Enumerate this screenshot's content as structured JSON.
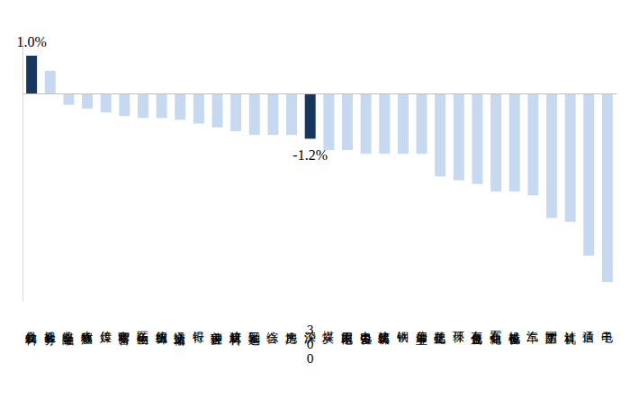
{
  "chart_data": {
    "type": "bar",
    "categories": [
      "食品饮料",
      "社会服务",
      "非银金融",
      "农林牧渔",
      "传媒",
      "商贸零售",
      "医药生物",
      "纺织服饰",
      "交通运输",
      "银行",
      "美容护理",
      "建筑材料",
      "轻工制造",
      "综合",
      "房地产",
      "沪深300",
      "煤炭",
      "家用电器",
      "电力设备",
      "建筑装饰",
      "钢铁",
      "公用事业",
      "基础化工",
      "环保",
      "有色金属",
      "石油石化",
      "机械设备",
      "汽车",
      "国防军工",
      "计算机",
      "通信",
      "电子"
    ],
    "values": [
      1.0,
      0.6,
      -0.3,
      -0.4,
      -0.5,
      -0.6,
      -0.65,
      -0.65,
      -0.7,
      -0.8,
      -0.9,
      -1.0,
      -1.1,
      -1.1,
      -1.1,
      -1.2,
      -1.5,
      -1.5,
      -1.6,
      -1.6,
      -1.6,
      -1.6,
      -2.2,
      -2.3,
      -2.4,
      -2.6,
      -2.6,
      -2.7,
      -3.3,
      -3.4,
      -4.3,
      -5.0
    ],
    "value_labels": [
      "1.0%",
      null,
      null,
      null,
      null,
      null,
      null,
      null,
      null,
      null,
      null,
      null,
      null,
      null,
      null,
      "-1.2%",
      null,
      null,
      null,
      null,
      null,
      null,
      null,
      null,
      null,
      null,
      null,
      null,
      null,
      null,
      null,
      null
    ],
    "colors": [
      "#17375e",
      "#c6d9f0",
      "#c6d9f0",
      "#c6d9f0",
      "#c6d9f0",
      "#c6d9f0",
      "#c6d9f0",
      "#c6d9f0",
      "#c6d9f0",
      "#c6d9f0",
      "#c6d9f0",
      "#c6d9f0",
      "#c6d9f0",
      "#c6d9f0",
      "#c6d9f0",
      "#17375e",
      "#c6d9f0",
      "#c6d9f0",
      "#c6d9f0",
      "#c6d9f0",
      "#c6d9f0",
      "#c6d9f0",
      "#c6d9f0",
      "#c6d9f0",
      "#c6d9f0",
      "#c6d9f0",
      "#c6d9f0",
      "#c6d9f0",
      "#c6d9f0",
      "#c6d9f0",
      "#c6d9f0",
      "#c6d9f0"
    ],
    "ylim": [
      -5.5,
      1.5
    ],
    "yticks": [],
    "tick_labels": "x",
    "grid": false
  }
}
